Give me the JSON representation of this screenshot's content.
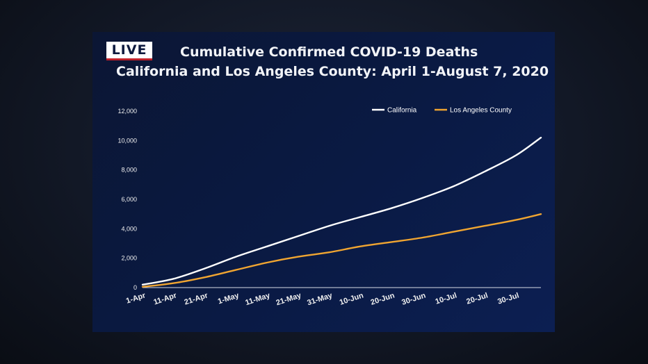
{
  "badge": {
    "label": "LIVE"
  },
  "colors": {
    "background": "#0b1a44",
    "badge_stripe": "#c0202a"
  },
  "chart_data": {
    "type": "line",
    "title": "Cumulative Confirmed COVID-19 Deaths",
    "subtitle": "California and Los Angeles County: April 1-August 7, 2020",
    "xlabel": "",
    "ylabel": "",
    "ylim": [
      0,
      12000
    ],
    "yticks": [
      0,
      2000,
      4000,
      6000,
      8000,
      10000,
      12000
    ],
    "ytick_labels": [
      "0",
      "2,000",
      "4,000",
      "6,000",
      "8,000",
      "10,000",
      "12,000"
    ],
    "xtick_labels": [
      "1-Apr",
      "11-Apr",
      "21-Apr",
      "1-May",
      "11-May",
      "21-May",
      "31-May",
      "10-Jun",
      "20-Jun",
      "30-Jun",
      "10-Jul",
      "20-Jul",
      "30-Jul"
    ],
    "x_range": [
      "1-Apr",
      "7-Aug"
    ],
    "grid": false,
    "legend_position": "top-right",
    "x": [
      "1-Apr",
      "11-Apr",
      "21-Apr",
      "1-May",
      "11-May",
      "21-May",
      "31-May",
      "10-Jun",
      "20-Jun",
      "30-Jun",
      "10-Jul",
      "20-Jul",
      "30-Jul",
      "7-Aug"
    ],
    "series": [
      {
        "name": "California",
        "color": "#ffffff",
        "values": [
          200,
          600,
          1300,
          2100,
          2800,
          3500,
          4200,
          4800,
          5400,
          6100,
          6900,
          7900,
          9000,
          10200
        ]
      },
      {
        "name": "Los Angeles County",
        "color": "#f0a531",
        "values": [
          50,
          300,
          700,
          1200,
          1700,
          2100,
          2400,
          2800,
          3100,
          3400,
          3800,
          4200,
          4600,
          5000
        ]
      }
    ]
  }
}
